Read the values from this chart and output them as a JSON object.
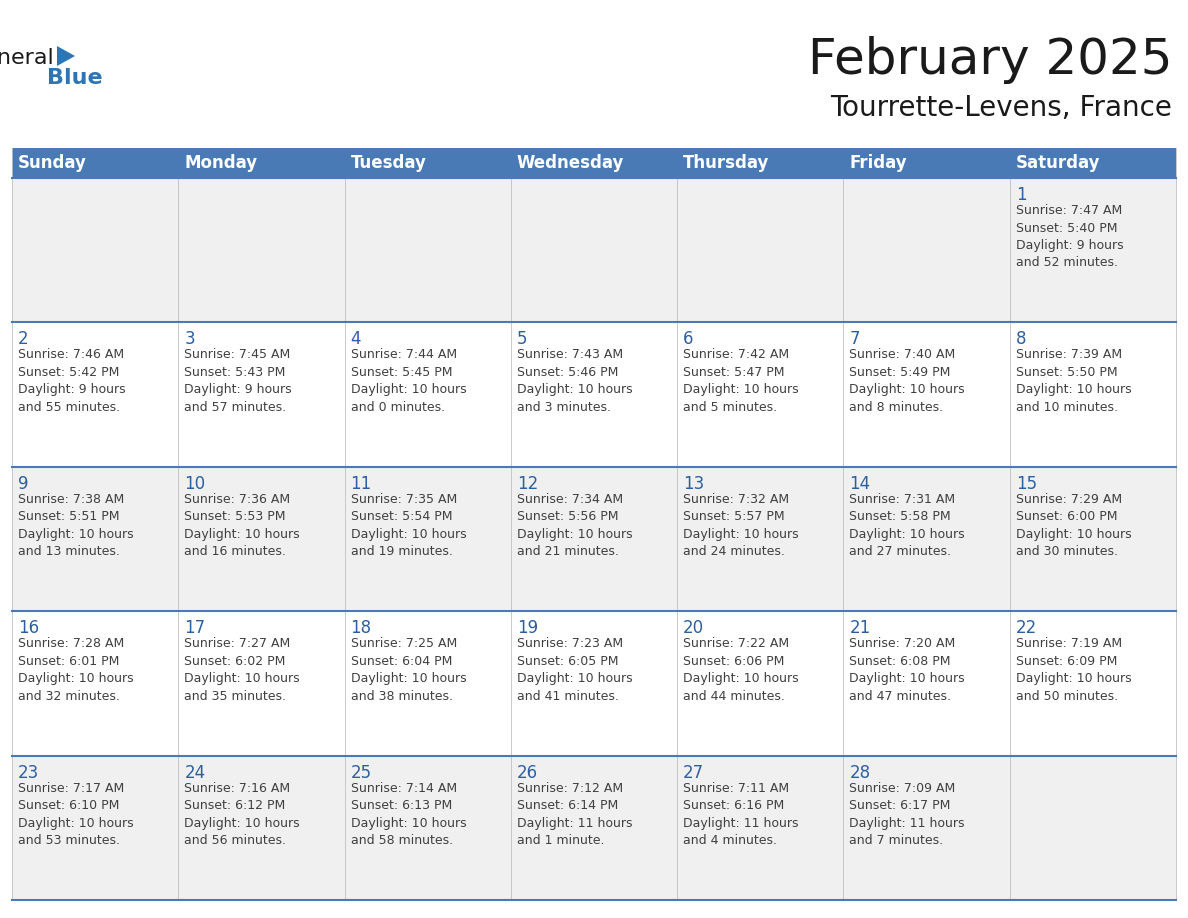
{
  "title": "February 2025",
  "subtitle": "Tourrette-Levens, France",
  "header_color": "#4a7ab5",
  "header_text_color": "#FFFFFF",
  "cell_bg_even": "#f0f0f0",
  "cell_bg_odd": "#FFFFFF",
  "day_text_color": "#2d5fa0",
  "info_text_color": "#404040",
  "border_color": "#4a7ab5",
  "grid_color": "#c0c0c0",
  "days_of_week": [
    "Sunday",
    "Monday",
    "Tuesday",
    "Wednesday",
    "Thursday",
    "Friday",
    "Saturday"
  ],
  "weeks": [
    [
      {
        "day": null,
        "info": ""
      },
      {
        "day": null,
        "info": ""
      },
      {
        "day": null,
        "info": ""
      },
      {
        "day": null,
        "info": ""
      },
      {
        "day": null,
        "info": ""
      },
      {
        "day": null,
        "info": ""
      },
      {
        "day": 1,
        "info": "Sunrise: 7:47 AM\nSunset: 5:40 PM\nDaylight: 9 hours\nand 52 minutes."
      }
    ],
    [
      {
        "day": 2,
        "info": "Sunrise: 7:46 AM\nSunset: 5:42 PM\nDaylight: 9 hours\nand 55 minutes."
      },
      {
        "day": 3,
        "info": "Sunrise: 7:45 AM\nSunset: 5:43 PM\nDaylight: 9 hours\nand 57 minutes."
      },
      {
        "day": 4,
        "info": "Sunrise: 7:44 AM\nSunset: 5:45 PM\nDaylight: 10 hours\nand 0 minutes."
      },
      {
        "day": 5,
        "info": "Sunrise: 7:43 AM\nSunset: 5:46 PM\nDaylight: 10 hours\nand 3 minutes."
      },
      {
        "day": 6,
        "info": "Sunrise: 7:42 AM\nSunset: 5:47 PM\nDaylight: 10 hours\nand 5 minutes."
      },
      {
        "day": 7,
        "info": "Sunrise: 7:40 AM\nSunset: 5:49 PM\nDaylight: 10 hours\nand 8 minutes."
      },
      {
        "day": 8,
        "info": "Sunrise: 7:39 AM\nSunset: 5:50 PM\nDaylight: 10 hours\nand 10 minutes."
      }
    ],
    [
      {
        "day": 9,
        "info": "Sunrise: 7:38 AM\nSunset: 5:51 PM\nDaylight: 10 hours\nand 13 minutes."
      },
      {
        "day": 10,
        "info": "Sunrise: 7:36 AM\nSunset: 5:53 PM\nDaylight: 10 hours\nand 16 minutes."
      },
      {
        "day": 11,
        "info": "Sunrise: 7:35 AM\nSunset: 5:54 PM\nDaylight: 10 hours\nand 19 minutes."
      },
      {
        "day": 12,
        "info": "Sunrise: 7:34 AM\nSunset: 5:56 PM\nDaylight: 10 hours\nand 21 minutes."
      },
      {
        "day": 13,
        "info": "Sunrise: 7:32 AM\nSunset: 5:57 PM\nDaylight: 10 hours\nand 24 minutes."
      },
      {
        "day": 14,
        "info": "Sunrise: 7:31 AM\nSunset: 5:58 PM\nDaylight: 10 hours\nand 27 minutes."
      },
      {
        "day": 15,
        "info": "Sunrise: 7:29 AM\nSunset: 6:00 PM\nDaylight: 10 hours\nand 30 minutes."
      }
    ],
    [
      {
        "day": 16,
        "info": "Sunrise: 7:28 AM\nSunset: 6:01 PM\nDaylight: 10 hours\nand 32 minutes."
      },
      {
        "day": 17,
        "info": "Sunrise: 7:27 AM\nSunset: 6:02 PM\nDaylight: 10 hours\nand 35 minutes."
      },
      {
        "day": 18,
        "info": "Sunrise: 7:25 AM\nSunset: 6:04 PM\nDaylight: 10 hours\nand 38 minutes."
      },
      {
        "day": 19,
        "info": "Sunrise: 7:23 AM\nSunset: 6:05 PM\nDaylight: 10 hours\nand 41 minutes."
      },
      {
        "day": 20,
        "info": "Sunrise: 7:22 AM\nSunset: 6:06 PM\nDaylight: 10 hours\nand 44 minutes."
      },
      {
        "day": 21,
        "info": "Sunrise: 7:20 AM\nSunset: 6:08 PM\nDaylight: 10 hours\nand 47 minutes."
      },
      {
        "day": 22,
        "info": "Sunrise: 7:19 AM\nSunset: 6:09 PM\nDaylight: 10 hours\nand 50 minutes."
      }
    ],
    [
      {
        "day": 23,
        "info": "Sunrise: 7:17 AM\nSunset: 6:10 PM\nDaylight: 10 hours\nand 53 minutes."
      },
      {
        "day": 24,
        "info": "Sunrise: 7:16 AM\nSunset: 6:12 PM\nDaylight: 10 hours\nand 56 minutes."
      },
      {
        "day": 25,
        "info": "Sunrise: 7:14 AM\nSunset: 6:13 PM\nDaylight: 10 hours\nand 58 minutes."
      },
      {
        "day": 26,
        "info": "Sunrise: 7:12 AM\nSunset: 6:14 PM\nDaylight: 11 hours\nand 1 minute."
      },
      {
        "day": 27,
        "info": "Sunrise: 7:11 AM\nSunset: 6:16 PM\nDaylight: 11 hours\nand 4 minutes."
      },
      {
        "day": 28,
        "info": "Sunrise: 7:09 AM\nSunset: 6:17 PM\nDaylight: 11 hours\nand 7 minutes."
      },
      {
        "day": null,
        "info": ""
      }
    ]
  ],
  "logo_text_general": "General",
  "logo_text_blue": "Blue",
  "logo_general_color": "#1a1a1a",
  "logo_blue_color": "#2E75B6",
  "logo_triangle_color": "#2E75B6",
  "title_fontsize": 36,
  "subtitle_fontsize": 20,
  "header_fontsize": 12,
  "day_num_fontsize": 12,
  "info_fontsize": 9
}
